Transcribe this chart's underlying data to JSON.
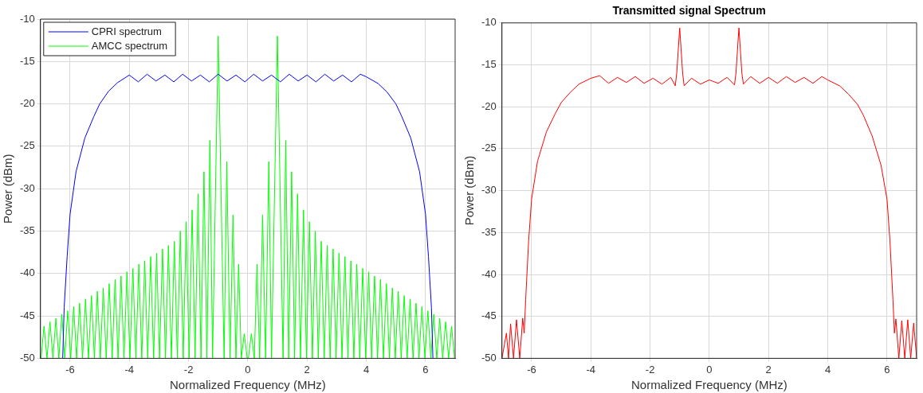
{
  "chart_data": [
    {
      "type": "line",
      "xlabel": "Normalized Frequency (MHz)",
      "ylabel": "Power (dBm)",
      "xlim": [
        -7,
        7
      ],
      "xticks": [
        -6,
        -4,
        -2,
        0,
        2,
        4,
        6
      ],
      "ylim": [
        -50,
        -10
      ],
      "yticks": [
        -50,
        -45,
        -40,
        -35,
        -30,
        -25,
        -20,
        -15,
        -10
      ],
      "grid": true,
      "legend": "top left",
      "marker": "none",
      "line_style": "solid",
      "series": [
        {
          "name": "CPRI spectrum",
          "color": "#0000ff",
          "x": [
            -6.25,
            -6.2,
            -6.1,
            -6.0,
            -5.8,
            -5.5,
            -5.2,
            -5.0,
            -4.7,
            -4.4,
            -4.0,
            -3.7,
            -3.4,
            -3.1,
            -2.8,
            -2.5,
            -2.2,
            -1.9,
            -1.6,
            -1.3,
            -1.0,
            -0.7,
            -0.4,
            -0.1,
            0.2,
            0.5,
            0.8,
            1.1,
            1.4,
            1.7,
            2.0,
            2.3,
            2.6,
            2.9,
            3.2,
            3.5,
            3.8,
            4.0,
            4.4,
            4.7,
            5.0,
            5.2,
            5.5,
            5.8,
            6.0,
            6.1,
            6.2,
            6.25
          ],
          "values": [
            -50,
            -44,
            -38,
            -33,
            -28,
            -24,
            -21.5,
            -20,
            -18.5,
            -17.5,
            -16.6,
            -17.4,
            -16.5,
            -17.3,
            -16.6,
            -17.4,
            -16.5,
            -17.3,
            -16.6,
            -17.4,
            -16.5,
            -17.3,
            -16.6,
            -17.4,
            -16.5,
            -17.3,
            -16.6,
            -17.4,
            -16.5,
            -17.3,
            -16.6,
            -17.4,
            -16.5,
            -17.3,
            -16.6,
            -17.4,
            -16.5,
            -16.8,
            -17.6,
            -18.6,
            -20,
            -21.5,
            -24,
            -28,
            -33,
            -38,
            -44,
            -50
          ]
        },
        {
          "name": "AMCC spectrum",
          "color": "#00ff00",
          "x": [
            -6.98,
            -6.88,
            -6.78,
            -6.68,
            -6.58,
            -6.48,
            -6.38,
            -6.28,
            -6.18,
            -6.08,
            -5.98,
            -5.88,
            -5.78,
            -5.68,
            -5.58,
            -5.48,
            -5.38,
            -5.28,
            -5.18,
            -5.08,
            -4.98,
            -4.88,
            -4.78,
            -4.68,
            -4.58,
            -4.48,
            -4.38,
            -4.28,
            -4.18,
            -4.08,
            -3.98,
            -3.88,
            -3.78,
            -3.68,
            -3.58,
            -3.48,
            -3.38,
            -3.28,
            -3.18,
            -3.08,
            -2.98,
            -2.88,
            -2.78,
            -2.68,
            -2.58,
            -2.48,
            -2.38,
            -2.28,
            -2.18,
            -2.08,
            -1.98,
            -1.88,
            -1.78,
            -1.68,
            -1.58,
            -1.48,
            -1.38,
            -1.28,
            -1.19,
            -1.0,
            -0.8,
            -0.71,
            -0.6,
            -0.5,
            -0.4,
            -0.31,
            -0.22,
            -0.12,
            -0.02,
            0.02,
            0.12,
            0.22,
            0.31,
            0.4,
            0.5,
            0.6,
            0.71,
            0.8,
            1.0,
            1.19,
            1.28,
            1.38,
            1.48,
            1.58,
            1.68,
            1.78,
            1.88,
            1.98,
            2.08,
            2.18,
            2.28,
            2.38,
            2.48,
            2.58,
            2.68,
            2.78,
            2.88,
            2.98,
            3.08,
            3.18,
            3.28,
            3.38,
            3.48,
            3.58,
            3.68,
            3.78,
            3.88,
            3.98,
            4.08,
            4.18,
            4.28,
            4.38,
            4.48,
            4.58,
            4.68,
            4.78,
            4.88,
            4.98,
            5.08,
            5.18,
            5.28,
            5.38,
            5.48,
            5.58,
            5.68,
            5.78,
            5.88,
            5.98,
            6.08,
            6.18,
            6.28,
            6.38,
            6.48,
            6.58,
            6.68,
            6.78,
            6.88,
            6.98
          ],
          "values": [
            -50,
            -46.2,
            -50,
            -45.7,
            -50,
            -45.3,
            -50,
            -44.8,
            -50,
            -44.4,
            -50,
            -43.9,
            -50,
            -43.5,
            -50,
            -43.0,
            -50,
            -42.6,
            -50,
            -42.1,
            -50,
            -41.7,
            -50,
            -41.2,
            -50,
            -40.7,
            -50,
            -40.3,
            -50,
            -39.8,
            -50,
            -39.4,
            -50,
            -38.9,
            -50,
            -38.5,
            -50,
            -38.0,
            -50,
            -37.6,
            -50,
            -37.1,
            -50,
            -36.7,
            -50,
            -36.2,
            -50,
            -35,
            -50,
            -33.9,
            -50,
            -32.5,
            -50,
            -30.6,
            -50,
            -28,
            -50,
            -24.3,
            -50,
            -12,
            -50,
            -26.8,
            -50,
            -33.1,
            -50,
            -38.9,
            -50,
            -47.1,
            -50,
            -50,
            -47.1,
            -50,
            -38.9,
            -50,
            -33.1,
            -50,
            -26.8,
            -50,
            -12,
            -50,
            -24.3,
            -50,
            -28,
            -50,
            -30.6,
            -50,
            -32.5,
            -50,
            -33.9,
            -50,
            -35,
            -50,
            -36.2,
            -50,
            -36.7,
            -50,
            -37.1,
            -50,
            -37.6,
            -50,
            -38.0,
            -50,
            -38.5,
            -50,
            -38.9,
            -50,
            -39.4,
            -50,
            -39.8,
            -50,
            -40.3,
            -50,
            -40.7,
            -50,
            -41.2,
            -50,
            -41.7,
            -50,
            -42.1,
            -50,
            -42.6,
            -50,
            -43.0,
            -50,
            -43.5,
            -50,
            -43.9,
            -50,
            -44.4,
            -50,
            -44.8,
            -50,
            -45.3,
            -50,
            -45.7,
            -50,
            -46.2,
            -50
          ]
        }
      ]
    },
    {
      "type": "line",
      "title": "Transmitted signal Spectrum",
      "xlabel": "Normalized Frequency (MHz)",
      "ylabel": "Power (dBm)",
      "xlim": [
        -7,
        7
      ],
      "xticks": [
        -6,
        -4,
        -2,
        0,
        2,
        4,
        6
      ],
      "ylim": [
        -50,
        -10
      ],
      "yticks": [
        -50,
        -45,
        -40,
        -35,
        -30,
        -25,
        -20,
        -15,
        -10
      ],
      "grid": true,
      "marker": "none",
      "line_style": "solid",
      "series": [
        {
          "color": "#ff0000",
          "x": [
            -7,
            -6.85,
            -6.78,
            -6.71,
            -6.61,
            -6.51,
            -6.4,
            -6.3,
            -6.25,
            -6.2,
            -6.1,
            -6.0,
            -5.8,
            -5.5,
            -5.2,
            -5.0,
            -4.7,
            -4.4,
            -4.0,
            -3.7,
            -3.4,
            -3.1,
            -2.8,
            -2.5,
            -2.2,
            -1.9,
            -1.6,
            -1.3,
            -1.15,
            -1.1,
            -1.0,
            -0.9,
            -0.85,
            -0.6,
            -0.3,
            0,
            0.3,
            0.6,
            0.85,
            0.9,
            1.0,
            1.1,
            1.15,
            1.4,
            1.7,
            2.0,
            2.3,
            2.6,
            2.9,
            3.2,
            3.5,
            3.8,
            4.0,
            4.4,
            4.7,
            5.0,
            5.2,
            5.5,
            5.8,
            6.0,
            6.1,
            6.2,
            6.25,
            6.3,
            6.4,
            6.5,
            6.6,
            6.7,
            6.8,
            6.9,
            7
          ],
          "values": [
            -50,
            -47,
            -50,
            -45.9,
            -50,
            -45.4,
            -50,
            -45.2,
            -47,
            -43,
            -36,
            -31,
            -26.5,
            -23,
            -20.8,
            -19.5,
            -18.3,
            -17.3,
            -16.6,
            -16.3,
            -17.2,
            -16.5,
            -17.1,
            -16.4,
            -17.2,
            -16.6,
            -17.3,
            -16.5,
            -17.5,
            -16,
            -10.6,
            -16,
            -17.5,
            -16.6,
            -17.3,
            -16.8,
            -17.2,
            -16.5,
            -17.4,
            -16,
            -10.6,
            -16,
            -17.3,
            -16.4,
            -17.2,
            -16.5,
            -17.2,
            -16.4,
            -17.1,
            -16.5,
            -17.2,
            -16.4,
            -16.8,
            -17.5,
            -18.5,
            -19.7,
            -21,
            -23.5,
            -27,
            -31,
            -36,
            -43,
            -47,
            -45.3,
            -50,
            -45.5,
            -50,
            -45.4,
            -50,
            -45.8,
            -50
          ]
        }
      ]
    }
  ]
}
